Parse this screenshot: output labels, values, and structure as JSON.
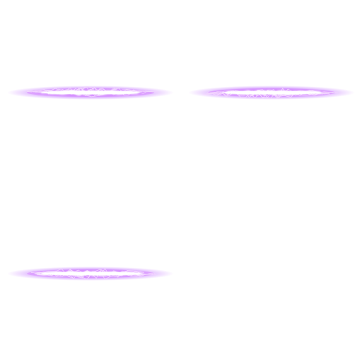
{
  "sprite_sheet": {
    "grid": {
      "columns": 2,
      "rows": 2
    },
    "effect": "lightning-bolt-horizontal",
    "colors": {
      "background": "#ffffff",
      "glow_outer": "#b04cff",
      "glow_inner": "#d98cff",
      "arc": "#f3d6ff",
      "core": "#ffffff"
    },
    "frames": [
      {
        "id": "frame-1",
        "filled": true,
        "seed": 7
      },
      {
        "id": "frame-2",
        "filled": true,
        "seed": 19
      },
      {
        "id": "frame-3",
        "filled": true,
        "seed": 31
      },
      {
        "id": "frame-4",
        "filled": false,
        "seed": 0
      }
    ]
  }
}
